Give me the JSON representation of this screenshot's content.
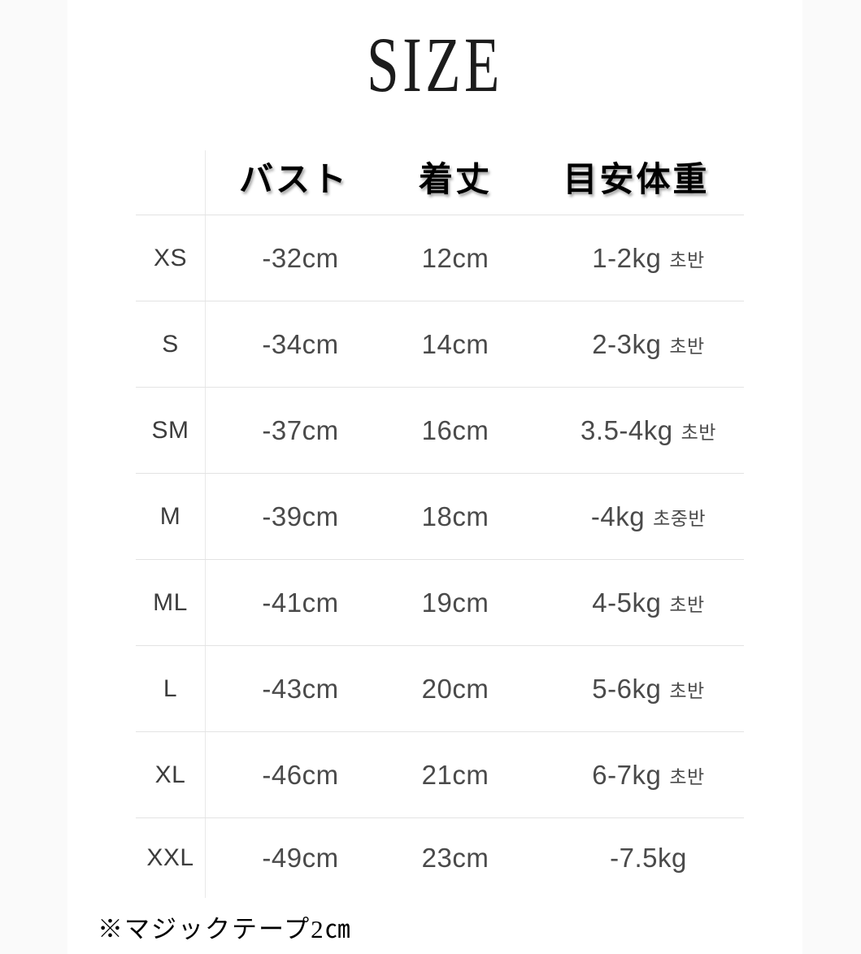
{
  "title": "SIZE",
  "table": {
    "headers": {
      "size": "",
      "bust": "バスト",
      "length": "着丈",
      "weight": "目安体重"
    },
    "rows": [
      {
        "size": "XS",
        "bust": "-32cm",
        "length": "12cm",
        "weight": "1-2kg",
        "note": "초반"
      },
      {
        "size": "S",
        "bust": "-34cm",
        "length": "14cm",
        "weight": "2-3kg",
        "note": "초반"
      },
      {
        "size": "SM",
        "bust": "-37cm",
        "length": "16cm",
        "weight": "3.5-4kg",
        "note": "초반"
      },
      {
        "size": "M",
        "bust": "-39cm",
        "length": "18cm",
        "weight": "-4kg",
        "note": "초중반"
      },
      {
        "size": "ML",
        "bust": "-41cm",
        "length": "19cm",
        "weight": "4-5kg",
        "note": "초반"
      },
      {
        "size": "L",
        "bust": "-43cm",
        "length": "20cm",
        "weight": "5-6kg",
        "note": "초반"
      },
      {
        "size": "XL",
        "bust": "-46cm",
        "length": "21cm",
        "weight": "6-7kg",
        "note": "초반"
      },
      {
        "size": "XXL",
        "bust": "-49cm",
        "length": "23cm",
        "weight": "-7.5kg",
        "note": ""
      }
    ]
  },
  "footnote": "※マジックテープ2㎝",
  "colors": {
    "background": "#fafafa",
    "content": "#ffffff",
    "line": "#e3e3e3",
    "vline": "#e9e9e9",
    "header_text": "#000000",
    "value_text": "#4a4a4a",
    "label_text": "#3d3d3d",
    "title_text": "#1c1c1c"
  },
  "chart_data": {
    "type": "table",
    "title": "SIZE",
    "columns": [
      "",
      "バスト",
      "着丈",
      "目安体重"
    ],
    "rows": [
      [
        "XS",
        "-32cm",
        "12cm",
        "1-2kg 초반"
      ],
      [
        "S",
        "-34cm",
        "14cm",
        "2-3kg 초반"
      ],
      [
        "SM",
        "-37cm",
        "16cm",
        "3.5-4kg 초반"
      ],
      [
        "M",
        "-39cm",
        "18cm",
        "-4kg 초중반"
      ],
      [
        "ML",
        "-41cm",
        "19cm",
        "4-5kg 초반"
      ],
      [
        "L",
        "-43cm",
        "20cm",
        "5-6kg 초반"
      ],
      [
        "XL",
        "-46cm",
        "21cm",
        "6-7kg 초반"
      ],
      [
        "XXL",
        "-49cm",
        "23cm",
        "-7.5kg"
      ]
    ],
    "footnote": "※マジックテープ2㎝",
    "layout": {
      "grid": "horizontal row separators + single vertical separator after size column",
      "header_style": "bold serif with drop shadow",
      "legend": "none"
    }
  }
}
